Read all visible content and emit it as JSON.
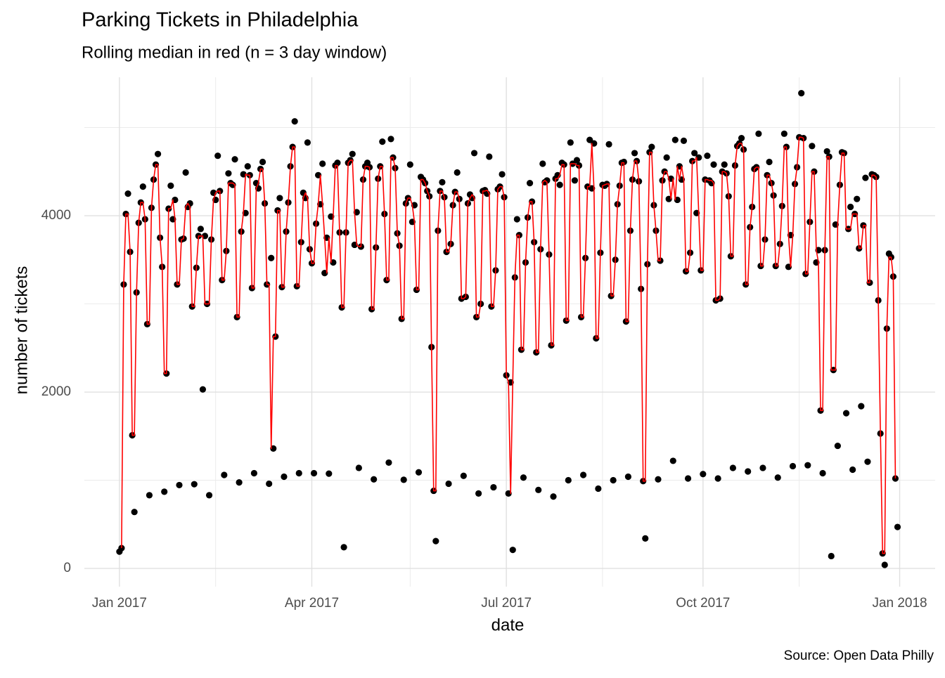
{
  "chart_data": {
    "type": "scatter",
    "title": "Parking Tickets in Philadelphia",
    "subtitle": "Rolling median in red (n = 3 day window)",
    "x_label": "date",
    "y_label": "number of tickets",
    "caption": "Source: Open Data Philly",
    "xlim": [
      -16.4,
      381.6
    ],
    "ylim": [
      -207,
      5570
    ],
    "xticks": [
      {
        "value": 0,
        "label": "Jan 2017"
      },
      {
        "value": 90,
        "label": "Apr 2017"
      },
      {
        "value": 181,
        "label": "Jul 2017"
      },
      {
        "value": 273,
        "label": "Oct 2017"
      },
      {
        "value": 365,
        "label": "Jan 2018"
      }
    ],
    "yticks": [
      0,
      2000,
      4000
    ],
    "minor_xticks": [
      45,
      136,
      226,
      318
    ],
    "minor_yticks": [
      1000,
      3000,
      5000
    ],
    "grid": true,
    "x": [
      0,
      1,
      2,
      3,
      4,
      5,
      6,
      7,
      8,
      9,
      10,
      11,
      12,
      13,
      14,
      15,
      16,
      17,
      18,
      19,
      20,
      21,
      22,
      23,
      24,
      25,
      26,
      27,
      28,
      29,
      30,
      31,
      32,
      33,
      34,
      35,
      36,
      37,
      38,
      39,
      40,
      41,
      42,
      43,
      44,
      45,
      46,
      47,
      48,
      49,
      50,
      51,
      52,
      53,
      54,
      55,
      56,
      57,
      58,
      59,
      60,
      61,
      62,
      63,
      64,
      65,
      66,
      67,
      68,
      69,
      70,
      71,
      72,
      73,
      74,
      75,
      76,
      77,
      78,
      79,
      80,
      81,
      82,
      83,
      84,
      85,
      86,
      87,
      88,
      89,
      90,
      91,
      92,
      93,
      94,
      95,
      96,
      97,
      98,
      99,
      100,
      101,
      102,
      103,
      104,
      105,
      106,
      107,
      108,
      109,
      110,
      111,
      112,
      113,
      114,
      115,
      116,
      117,
      118,
      119,
      120,
      121,
      122,
      123,
      124,
      125,
      126,
      127,
      128,
      129,
      130,
      131,
      132,
      133,
      134,
      135,
      136,
      137,
      138,
      139,
      140,
      141,
      142,
      143,
      144,
      145,
      146,
      147,
      148,
      149,
      150,
      151,
      152,
      153,
      154,
      155,
      156,
      157,
      158,
      159,
      160,
      161,
      162,
      163,
      164,
      165,
      166,
      167,
      168,
      169,
      170,
      171,
      172,
      173,
      174,
      175,
      176,
      177,
      178,
      179,
      180,
      181,
      182,
      183,
      184,
      185,
      186,
      187,
      188,
      189,
      190,
      191,
      192,
      193,
      194,
      195,
      196,
      197,
      198,
      199,
      200,
      201,
      202,
      203,
      204,
      205,
      206,
      207,
      208,
      209,
      210,
      211,
      212,
      213,
      214,
      215,
      216,
      217,
      218,
      219,
      220,
      221,
      222,
      223,
      224,
      225,
      226,
      227,
      228,
      229,
      230,
      231,
      232,
      233,
      234,
      235,
      236,
      237,
      238,
      239,
      240,
      241,
      242,
      243,
      244,
      245,
      246,
      247,
      248,
      249,
      250,
      251,
      252,
      253,
      254,
      255,
      256,
      257,
      258,
      259,
      260,
      261,
      262,
      263,
      264,
      265,
      266,
      267,
      268,
      269,
      270,
      271,
      272,
      273,
      274,
      275,
      276,
      277,
      278,
      279,
      280,
      281,
      282,
      283,
      284,
      285,
      286,
      287,
      288,
      289,
      290,
      291,
      292,
      293,
      294,
      295,
      296,
      297,
      298,
      299,
      300,
      301,
      302,
      303,
      304,
      305,
      306,
      307,
      308,
      309,
      310,
      311,
      312,
      313,
      314,
      315,
      316,
      317,
      318,
      319,
      320,
      321,
      322,
      323,
      324,
      325,
      326,
      327,
      328,
      329,
      330,
      331,
      332,
      333,
      334,
      335,
      336,
      337,
      338,
      339,
      340,
      341,
      342,
      343,
      344,
      345,
      346,
      347,
      348,
      349,
      350,
      351,
      352,
      353,
      354,
      355,
      356,
      357,
      358,
      359,
      360,
      361,
      362,
      363,
      364
    ],
    "series": [
      {
        "style": "points",
        "color": "#000000",
        "values": [
          190,
          230,
          3220,
          4020,
          4250,
          3590,
          1510,
          640,
          3130,
          3920,
          4150,
          4330,
          3960,
          2770,
          830,
          4090,
          4410,
          4580,
          4700,
          3750,
          3420,
          870,
          2210,
          4080,
          4340,
          3960,
          4180,
          3220,
          945,
          3730,
          3740,
          4490,
          4100,
          4140,
          2970,
          955,
          3410,
          3770,
          3850,
          2030,
          3770,
          3000,
          830,
          3730,
          4260,
          4180,
          4680,
          4280,
          3270,
          1060,
          3600,
          4480,
          4370,
          4350,
          4640,
          2850,
          975,
          3820,
          4470,
          4030,
          4560,
          4460,
          3180,
          1080,
          4370,
          4310,
          4530,
          4610,
          4140,
          3220,
          960,
          3520,
          1360,
          2630,
          4060,
          4200,
          3190,
          1040,
          3820,
          4150,
          4560,
          4780,
          5070,
          3200,
          1080,
          3700,
          4260,
          4200,
          4830,
          3620,
          3460,
          1080,
          3910,
          4460,
          4130,
          4590,
          3350,
          3750,
          1075,
          3990,
          3470,
          4570,
          4600,
          3810,
          2960,
          240,
          3810,
          4600,
          4630,
          4700,
          3670,
          4040,
          1140,
          3650,
          4410,
          4560,
          4600,
          4550,
          2940,
          1010,
          3640,
          4420,
          4560,
          4840,
          4020,
          3270,
          1200,
          4870,
          4660,
          4540,
          3800,
          3660,
          2830,
          1005,
          4140,
          4200,
          4580,
          3930,
          4120,
          3160,
          1090,
          4440,
          4410,
          4370,
          4280,
          4220,
          2510,
          880,
          310,
          3830,
          4280,
          4380,
          4210,
          3590,
          960,
          3680,
          4120,
          4270,
          4490,
          4190,
          3060,
          1050,
          3080,
          4140,
          4240,
          4200,
          4710,
          2850,
          850,
          3000,
          4280,
          4290,
          4250,
          4670,
          2970,
          920,
          3380,
          4300,
          4330,
          4470,
          4210,
          2190,
          850,
          2110,
          210,
          3300,
          3960,
          3780,
          2480,
          1030,
          3470,
          3980,
          4370,
          4160,
          3700,
          2450,
          890,
          3620,
          4590,
          4380,
          4400,
          3560,
          2530,
          815,
          4420,
          4460,
          4350,
          4600,
          4580,
          2810,
          1000,
          4830,
          4590,
          4400,
          4630,
          4570,
          2850,
          1060,
          3520,
          4330,
          4860,
          4310,
          4820,
          2610,
          905,
          3580,
          4350,
          4340,
          4360,
          4810,
          3090,
          1000,
          3500,
          4130,
          4340,
          4600,
          4610,
          2800,
          1040,
          3830,
          4410,
          4710,
          4620,
          4390,
          3170,
          990,
          340,
          3450,
          4720,
          4780,
          4120,
          3830,
          1010,
          3490,
          4400,
          4500,
          4660,
          4190,
          4420,
          1220,
          4860,
          4180,
          4560,
          4410,
          4850,
          3370,
          1020,
          3580,
          4620,
          4710,
          4030,
          4660,
          3380,
          1070,
          4410,
          4680,
          4400,
          4370,
          4580,
          3040,
          1020,
          3060,
          4500,
          4580,
          4480,
          4220,
          3540,
          1140,
          4570,
          4790,
          4820,
          4880,
          4750,
          3220,
          1100,
          3870,
          4100,
          4530,
          4550,
          4930,
          3430,
          1140,
          3730,
          4460,
          4610,
          4370,
          4230,
          3430,
          1030,
          3680,
          4110,
          4930,
          4780,
          3420,
          3780,
          1160,
          4360,
          4550,
          4890,
          5390,
          4880,
          3340,
          1170,
          3930,
          4790,
          4500,
          3470,
          3610,
          1790,
          1080,
          3610,
          4730,
          4670,
          140,
          2250,
          3900,
          1390,
          4350,
          4720,
          4710,
          1760,
          3850,
          4100,
          1120,
          4020,
          4190,
          3630,
          1840,
          3890,
          4430,
          1210,
          3240,
          4470,
          4460,
          4440,
          3040,
          1530,
          170,
          40,
          2720,
          3570,
          3530,
          3310,
          1020,
          470
        ]
      },
      {
        "style": "line",
        "color": "#ff0000",
        "values": [
          null,
          230,
          3220,
          4020,
          4020,
          3590,
          1510,
          1510,
          3130,
          3920,
          4150,
          4150,
          3960,
          2770,
          2770,
          4090,
          4410,
          4580,
          4580,
          3750,
          3420,
          2210,
          2210,
          4080,
          4080,
          4180,
          3960,
          3220,
          3220,
          3730,
          3740,
          4100,
          4140,
          4100,
          2970,
          2970,
          3410,
          3770,
          3770,
          3770,
          3000,
          3000,
          3000,
          3730,
          4180,
          4260,
          4280,
          4280,
          3270,
          3270,
          3600,
          4370,
          4370,
          4370,
          4350,
          2850,
          2850,
          3820,
          4030,
          4470,
          4460,
          4460,
          3180,
          3180,
          4310,
          4370,
          4530,
          4530,
          4140,
          3220,
          3220,
          1360,
          2630,
          2630,
          4060,
          4060,
          3190,
          3190,
          3820,
          4150,
          4560,
          4780,
          4780,
          3200,
          3200,
          3700,
          4200,
          4260,
          4200,
          3620,
          3460,
          3460,
          3910,
          4130,
          4460,
          4130,
          3750,
          3350,
          3750,
          3470,
          3990,
          4570,
          4570,
          3810,
          2960,
          2960,
          3810,
          4600,
          4630,
          4630,
          4040,
          3670,
          3650,
          3650,
          4410,
          4560,
          4560,
          4550,
          2940,
          2940,
          3640,
          4420,
          4560,
          4560,
          4020,
          3270,
          3270,
          4660,
          4660,
          4540,
          3800,
          3660,
          2830,
          2830,
          4140,
          4200,
          4200,
          4120,
          3930,
          3160,
          3160,
          4410,
          4410,
          4370,
          4280,
          4220,
          2510,
          880,
          880,
          3830,
          4280,
          4280,
          4210,
          3590,
          3590,
          3680,
          4120,
          4270,
          4270,
          4190,
          3060,
          3060,
          3080,
          4140,
          4200,
          4240,
          4200,
          2850,
          2850,
          3000,
          4280,
          4280,
          4290,
          4250,
          2970,
          2970,
          3380,
          4300,
          4330,
          4330,
          4210,
          2190,
          2110,
          850,
          2110,
          3300,
          3780,
          3780,
          2480,
          2480,
          3470,
          3980,
          4160,
          4160,
          3700,
          2450,
          2450,
          3620,
          4380,
          4400,
          4380,
          3560,
          2530,
          2530,
          4420,
          4420,
          4460,
          4580,
          4580,
          2810,
          2810,
          4590,
          4590,
          4590,
          4570,
          4570,
          2850,
          2850,
          3520,
          4330,
          4330,
          4820,
          4310,
          2610,
          2610,
          3580,
          4340,
          4350,
          4360,
          4360,
          3090,
          3090,
          3500,
          4130,
          4340,
          4600,
          4600,
          2800,
          2800,
          3830,
          4410,
          4620,
          4620,
          4390,
          3170,
          990,
          990,
          3450,
          4720,
          4720,
          4120,
          3830,
          3490,
          3490,
          4400,
          4500,
          4500,
          4420,
          4190,
          4420,
          4180,
          4560,
          4410,
          4560,
          4410,
          3370,
          3370,
          3580,
          4620,
          4620,
          4660,
          4030,
          3380,
          3380,
          4410,
          4410,
          4400,
          4400,
          4370,
          3040,
          3040,
          3060,
          4500,
          4500,
          4480,
          4220,
          3540,
          3540,
          4570,
          4790,
          4820,
          4820,
          4750,
          3220,
          3220,
          3870,
          4100,
          4530,
          4550,
          4550,
          3430,
          3430,
          3730,
          4460,
          4460,
          4370,
          4230,
          3430,
          3430,
          3680,
          4110,
          4780,
          4780,
          3780,
          3420,
          3780,
          4360,
          4550,
          4890,
          4890,
          4880,
          3340,
          3340,
          3930,
          4500,
          4500,
          3610,
          3470,
          1790,
          1790,
          3610,
          4670,
          4670,
          2250,
          2250,
          2250,
          3900,
          4350,
          4710,
          4710,
          3850,
          3850,
          3850,
          4020,
          4020,
          4020,
          3630,
          3630,
          3890,
          3890,
          3240,
          3240,
          4460,
          4460,
          4440,
          3040,
          1530,
          170,
          170,
          2720,
          3530,
          3530,
          3310,
          1020,
          null
        ]
      }
    ]
  }
}
